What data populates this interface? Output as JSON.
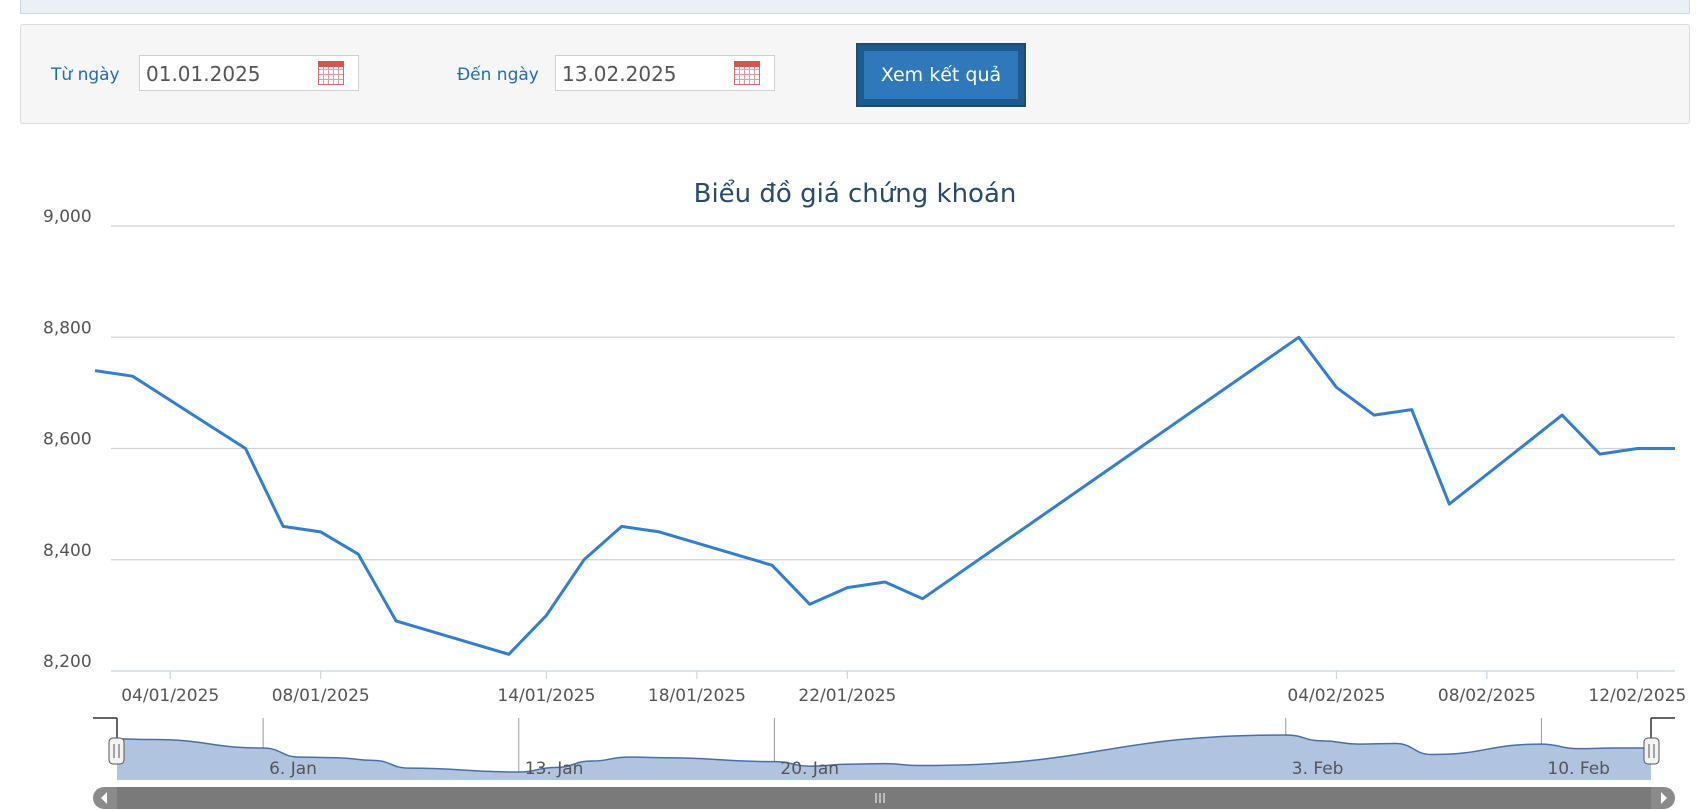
{
  "filter": {
    "from_label": "Từ ngày",
    "from_value": "01.01.2025",
    "to_label": "Đến ngày",
    "to_value": "13.02.2025",
    "submit_label": "Xem kết quả"
  },
  "colors": {
    "line": "#2f7fd8",
    "navigator_fill": "#b1c4df",
    "navigator_line": "#4a6fa5",
    "button": "#2e78bb"
  },
  "chart_data": {
    "type": "line",
    "title": "Biểu đồ giá chứng khoán",
    "ylim": [
      8200,
      9000
    ],
    "yticks": [
      9000,
      8800,
      8600,
      8400,
      8200
    ],
    "ytick_labels": [
      "9,000",
      "8,800",
      "8,600",
      "8,400",
      "8,200"
    ],
    "xticks": [
      "04/01/2025",
      "08/01/2025",
      "14/01/2025",
      "18/01/2025",
      "22/01/2025",
      "04/02/2025",
      "08/02/2025",
      "12/02/2025"
    ],
    "grid": true,
    "series": [
      {
        "x": [
          "2025-01-02",
          "2025-01-03",
          "2025-01-06",
          "2025-01-07",
          "2025-01-08",
          "2025-01-09",
          "2025-01-10",
          "2025-01-13",
          "2025-01-14",
          "2025-01-15",
          "2025-01-16",
          "2025-01-17",
          "2025-01-20",
          "2025-01-21",
          "2025-01-22",
          "2025-01-23",
          "2025-01-24",
          "2025-02-03",
          "2025-02-04",
          "2025-02-05",
          "2025-02-06",
          "2025-02-07",
          "2025-02-10",
          "2025-02-11",
          "2025-02-12",
          "2025-02-13"
        ],
        "values": [
          8740,
          8730,
          8600,
          8460,
          8450,
          8410,
          8290,
          8230,
          8300,
          8400,
          8460,
          8450,
          8390,
          8320,
          8350,
          8360,
          8330,
          8800,
          8710,
          8660,
          8670,
          8500,
          8660,
          8590,
          8600,
          8600
        ]
      }
    ],
    "navigator": {
      "labels": [
        "6. Jan",
        "13. Jan",
        "20. Jan",
        "3. Feb",
        "10. Feb"
      ]
    }
  }
}
